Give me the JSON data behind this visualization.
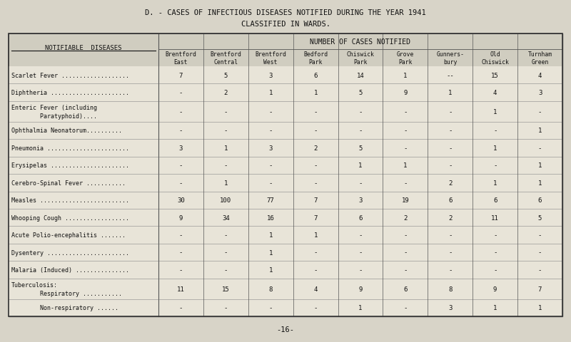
{
  "title_line1": "D. - CASES OF INFECTIOUS DISEASES NOTIFIED DURING THE YEAR 1941",
  "title_line2": "CLASSIFIED IN WARDS.",
  "page_number": "-16-",
  "col_header_main": "NUMBER OF CASES NOTIFIED",
  "col_left_header": "NOTIFIABLE  DISEASES",
  "column_headers": [
    "Brentford\nEast",
    "Brentford\nCentral",
    "Brentford\nWest",
    "Bedford\nPark",
    "Chiswick\nPark",
    "Grove\nPark",
    "Gunners-\nbury",
    "Old\nChiswick",
    "Turnham\nGreen"
  ],
  "rows": [
    {
      "disease1": "Scarlet Fever ...................",
      "disease2": null,
      "values": [
        "7",
        "5",
        "3",
        "6",
        "14",
        "1",
        "--",
        "15",
        "4"
      ]
    },
    {
      "disease1": "Diphtheria ......................",
      "disease2": null,
      "values": [
        "-",
        "2",
        "1",
        "1",
        "5",
        "9",
        "1",
        "4",
        "3"
      ]
    },
    {
      "disease1": "Enteric Fever (including",
      "disease2": "        Paratyphoid)....",
      "values": [
        "-",
        "-",
        "-",
        "-",
        "-",
        "-",
        "-",
        "1",
        "-"
      ]
    },
    {
      "disease1": "Ophthalmia Neonatorum..........",
      "disease2": null,
      "values": [
        "-",
        "-",
        "-",
        "-",
        "-",
        "-",
        "-",
        "-",
        "1"
      ]
    },
    {
      "disease1": "Pneumonia .......................",
      "disease2": null,
      "values": [
        "3",
        "1",
        "3",
        "2",
        "5",
        "-",
        "-",
        "1",
        "-"
      ]
    },
    {
      "disease1": "Erysipelas ......................",
      "disease2": null,
      "values": [
        "-",
        "-",
        "-",
        "-",
        "1",
        "1",
        "-",
        "-",
        "1"
      ]
    },
    {
      "disease1": "Cerebro-Spinal Fever ...........",
      "disease2": null,
      "values": [
        "-",
        "1",
        "-",
        "-",
        "-",
        "-",
        "2",
        "1",
        "1"
      ]
    },
    {
      "disease1": "Measles .........................",
      "disease2": null,
      "values": [
        "30",
        "100",
        "77",
        "7",
        "3",
        "19",
        "6",
        "6",
        "6"
      ]
    },
    {
      "disease1": "Whooping Cough ..................",
      "disease2": null,
      "values": [
        "9",
        "34",
        "16",
        "7",
        "6",
        "2",
        "2",
        "11",
        "5"
      ]
    },
    {
      "disease1": "Acute Polio-encephalitis .......",
      "disease2": null,
      "values": [
        "-",
        "-",
        "1",
        "1",
        "-",
        "-",
        "-",
        "-",
        "-"
      ]
    },
    {
      "disease1": "Dysentery .......................",
      "disease2": null,
      "values": [
        "-",
        "-",
        "1",
        "-",
        "-",
        "-",
        "-",
        "-",
        "-"
      ]
    },
    {
      "disease1": "Malaria (Induced) ...............",
      "disease2": null,
      "values": [
        "-",
        "-",
        "1",
        "-",
        "-",
        "-",
        "-",
        "-",
        "-"
      ]
    },
    {
      "disease1": "Tuberculosis:",
      "disease2": "        Respiratory ...........",
      "values": [
        "11",
        "15",
        "8",
        "4",
        "9",
        "6",
        "8",
        "9",
        "7"
      ]
    },
    {
      "disease1": null,
      "disease2": "        Non-respiratory ......",
      "values": [
        "-",
        "-",
        "-",
        "-",
        "1",
        "-",
        "3",
        "1",
        "1"
      ]
    }
  ],
  "bg_color": "#d8d4c8",
  "table_bg": "#e8e4d8",
  "header_bg": "#d0cdc0",
  "line_color": "#555555",
  "font_color": "#111111"
}
